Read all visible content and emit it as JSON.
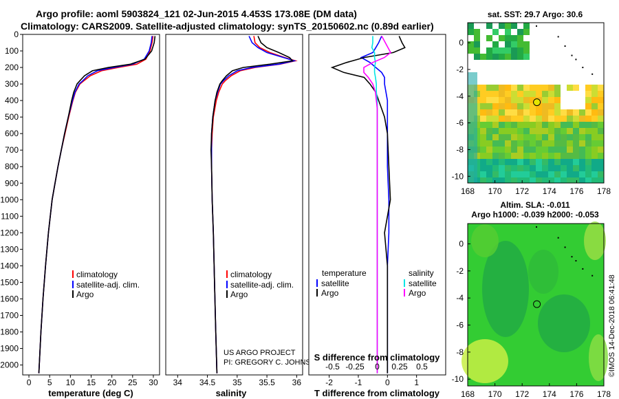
{
  "header": {
    "line1": "Argo profile: aoml 5903824_121 02-Jun-2015 4.453S 173.08E (DM data)",
    "line2": "Climatology: CARS2009. Satellite-adjusted climatology: synTS_20150602.nc (0.89d earlier)"
  },
  "colors": {
    "climatology": "#ff0000",
    "satellite": "#0000ff",
    "argo": "#000000",
    "sat_salinity": "#00e5e5",
    "argo_salinity": "#ff00ff"
  },
  "depth_axis": {
    "ticks": [
      0,
      100,
      200,
      300,
      400,
      500,
      600,
      700,
      800,
      900,
      1000,
      1100,
      1200,
      1300,
      1400,
      1500,
      1600,
      1700,
      1800,
      1900,
      2000
    ],
    "range": [
      0,
      2060
    ]
  },
  "chart_data": [
    {
      "type": "line",
      "title": "",
      "xlabel": "temperature (deg C)",
      "ylabel": "",
      "xlim": [
        -1.5,
        31.5
      ],
      "xticks": [
        0,
        5,
        10,
        15,
        20,
        25,
        30
      ],
      "xtick_labels": [
        "0",
        "5",
        "10",
        "15",
        "20",
        "25",
        "30"
      ],
      "legend": [
        "climatology",
        "satellite-adj. clim.",
        "Argo"
      ],
      "depth": [
        10,
        50,
        100,
        150,
        180,
        200,
        220,
        250,
        280,
        300,
        350,
        400,
        500,
        600,
        700,
        800,
        900,
        1000,
        1200,
        1400,
        1600,
        1800,
        2000,
        2050
      ],
      "series": [
        {
          "name": "climatology",
          "values": [
            29.9,
            29.7,
            29.2,
            28.2,
            26.0,
            21.5,
            17.5,
            14.8,
            13.3,
            12.3,
            11.2,
            10.6,
            9.6,
            8.7,
            7.8,
            7.0,
            6.3,
            5.6,
            4.7,
            4.0,
            3.4,
            2.9,
            2.5,
            2.4
          ]
        },
        {
          "name": "satellite-adj. clim.",
          "values": [
            29.7,
            29.5,
            29.0,
            27.8,
            25.0,
            20.5,
            16.5,
            14.2,
            13.0,
            12.1,
            11.1,
            10.5,
            9.5,
            8.6,
            7.8,
            7.0,
            6.3,
            5.6,
            4.7,
            4.0,
            3.4,
            2.9,
            2.5,
            2.4
          ]
        },
        {
          "name": "Argo",
          "values": [
            30.4,
            30.2,
            29.6,
            28.0,
            24.5,
            19.2,
            15.3,
            13.4,
            12.3,
            11.6,
            10.8,
            10.3,
            9.5,
            8.6,
            7.8,
            7.0,
            6.3,
            5.6,
            4.7,
            4.0,
            3.4,
            2.9,
            2.5,
            2.4
          ]
        }
      ]
    },
    {
      "type": "line",
      "title": "",
      "xlabel": "salinity",
      "ylabel": "",
      "xlim": [
        33.8,
        36.1
      ],
      "xticks": [
        34,
        34.5,
        35,
        35.5,
        36
      ],
      "xtick_labels": [
        "34",
        "34.5",
        "35",
        "35.5",
        "36"
      ],
      "legend": [
        "climatology",
        "satellite-adj. clim.",
        "Argo"
      ],
      "credit": [
        "US ARGO PROJECT",
        "PI: GREGORY C. JOHNSON"
      ],
      "depth": [
        10,
        50,
        80,
        110,
        140,
        160,
        180,
        200,
        220,
        250,
        280,
        300,
        350,
        400,
        500,
        600,
        700,
        800,
        1000,
        1200,
        1500,
        1800,
        2050
      ],
      "series": [
        {
          "name": "climatology",
          "values": [
            35.28,
            35.3,
            35.38,
            35.55,
            35.8,
            35.98,
            35.72,
            35.3,
            35.05,
            34.9,
            34.8,
            34.75,
            34.69,
            34.65,
            34.6,
            34.58,
            34.57,
            34.57,
            34.58,
            34.6,
            34.62,
            34.64,
            34.66
          ]
        },
        {
          "name": "satellite-adj. clim.",
          "values": [
            35.2,
            35.25,
            35.35,
            35.5,
            35.78,
            35.96,
            35.7,
            35.25,
            35.0,
            34.86,
            34.77,
            34.72,
            34.67,
            34.63,
            34.59,
            34.57,
            34.57,
            34.57,
            34.58,
            34.6,
            34.62,
            34.64,
            34.66
          ]
        },
        {
          "name": "Argo",
          "values": [
            35.35,
            35.4,
            35.5,
            35.7,
            35.88,
            35.93,
            35.55,
            35.1,
            34.92,
            34.82,
            34.75,
            34.71,
            34.66,
            34.63,
            34.59,
            34.57,
            34.56,
            34.57,
            34.58,
            34.6,
            34.62,
            34.64,
            34.66
          ]
        }
      ]
    },
    {
      "type": "line",
      "title": "",
      "xlabel": "T difference from climatology",
      "xlabel2": "S difference from climatology",
      "xlim": [
        -2.7,
        2.0
      ],
      "xticks": [
        -2,
        -1,
        0,
        1
      ],
      "xtick_labels": [
        "-2",
        "-1",
        "0",
        "1"
      ],
      "sticks": [
        -0.5,
        -0.25,
        0,
        0.25,
        0.5
      ],
      "stick_labels": [
        "-0.5",
        "-0.25",
        "0",
        "0.25",
        "0.5"
      ],
      "legend_headers": [
        "temperature",
        "salinity"
      ],
      "legend_left": [
        "satellite",
        "Argo"
      ],
      "legend_right": [
        "satellite",
        "Argo"
      ],
      "depth": [
        10,
        50,
        80,
        110,
        140,
        170,
        200,
        230,
        260,
        300,
        350,
        400,
        450,
        500,
        600,
        800,
        1000,
        1200,
        1400,
        1600,
        1800,
        2050
      ],
      "series": [
        {
          "name": "T satellite",
          "axis": "T",
          "values": [
            -0.2,
            -0.3,
            -0.4,
            -0.5,
            -0.9,
            -0.6,
            -0.4,
            -0.2,
            -0.1,
            -0.1,
            -0.05,
            0,
            0,
            0,
            0,
            0,
            0.05,
            0.05,
            0,
            0,
            0,
            0
          ]
        },
        {
          "name": "T Argo",
          "axis": "T",
          "values": [
            0.4,
            0.5,
            0.6,
            0.2,
            -0.8,
            -1.4,
            -1.9,
            -1.5,
            -0.8,
            -0.6,
            -0.4,
            -0.3,
            -0.2,
            -0.1,
            0,
            0.05,
            0.1,
            -0.1,
            0,
            0,
            0,
            0
          ]
        },
        {
          "name": "S satellite",
          "axis": "S",
          "values": [
            -0.05,
            -0.05,
            -0.06,
            -0.03,
            -0.03,
            -0.02,
            -0.03,
            -0.03,
            -0.02,
            -0.01,
            -0.01,
            0,
            0,
            0,
            0,
            0,
            0,
            0,
            0,
            0,
            0,
            0
          ]
        },
        {
          "name": "S Argo",
          "axis": "S",
          "values": [
            0.05,
            0.09,
            0.12,
            0.15,
            0.08,
            -0.05,
            -0.15,
            -0.15,
            -0.1,
            -0.05,
            -0.02,
            -0.01,
            0,
            0,
            0,
            0,
            0,
            0,
            0,
            0,
            0,
            0
          ]
        }
      ]
    },
    {
      "type": "heatmap",
      "title": "sat. SST: 29.7 Argo: 30.6",
      "xlim": [
        168,
        178
      ],
      "ylim": [
        -10.5,
        1.5
      ],
      "xticks": [
        168,
        170,
        172,
        174,
        176,
        178
      ],
      "yticks": [
        0,
        -2,
        -4,
        -6,
        -8,
        -10
      ],
      "marker": {
        "lon": 173.08,
        "lat": -4.453,
        "color": "#e6e600"
      }
    },
    {
      "type": "heatmap",
      "title": "Altim. SLA: -0.011",
      "subtitle": "Argo h1000: -0.039 h2000: -0.053",
      "xlim": [
        168,
        178
      ],
      "ylim": [
        -10.5,
        1.5
      ],
      "xticks": [
        168,
        170,
        172,
        174,
        176,
        178
      ],
      "yticks": [
        0,
        -2,
        -4,
        -6,
        -8,
        -10
      ],
      "marker": {
        "lon": 173.08,
        "lat": -4.453,
        "color": "none"
      }
    }
  ],
  "footer": {
    "credit": "©IMOS 14-Dec-2018 06:41:48"
  }
}
